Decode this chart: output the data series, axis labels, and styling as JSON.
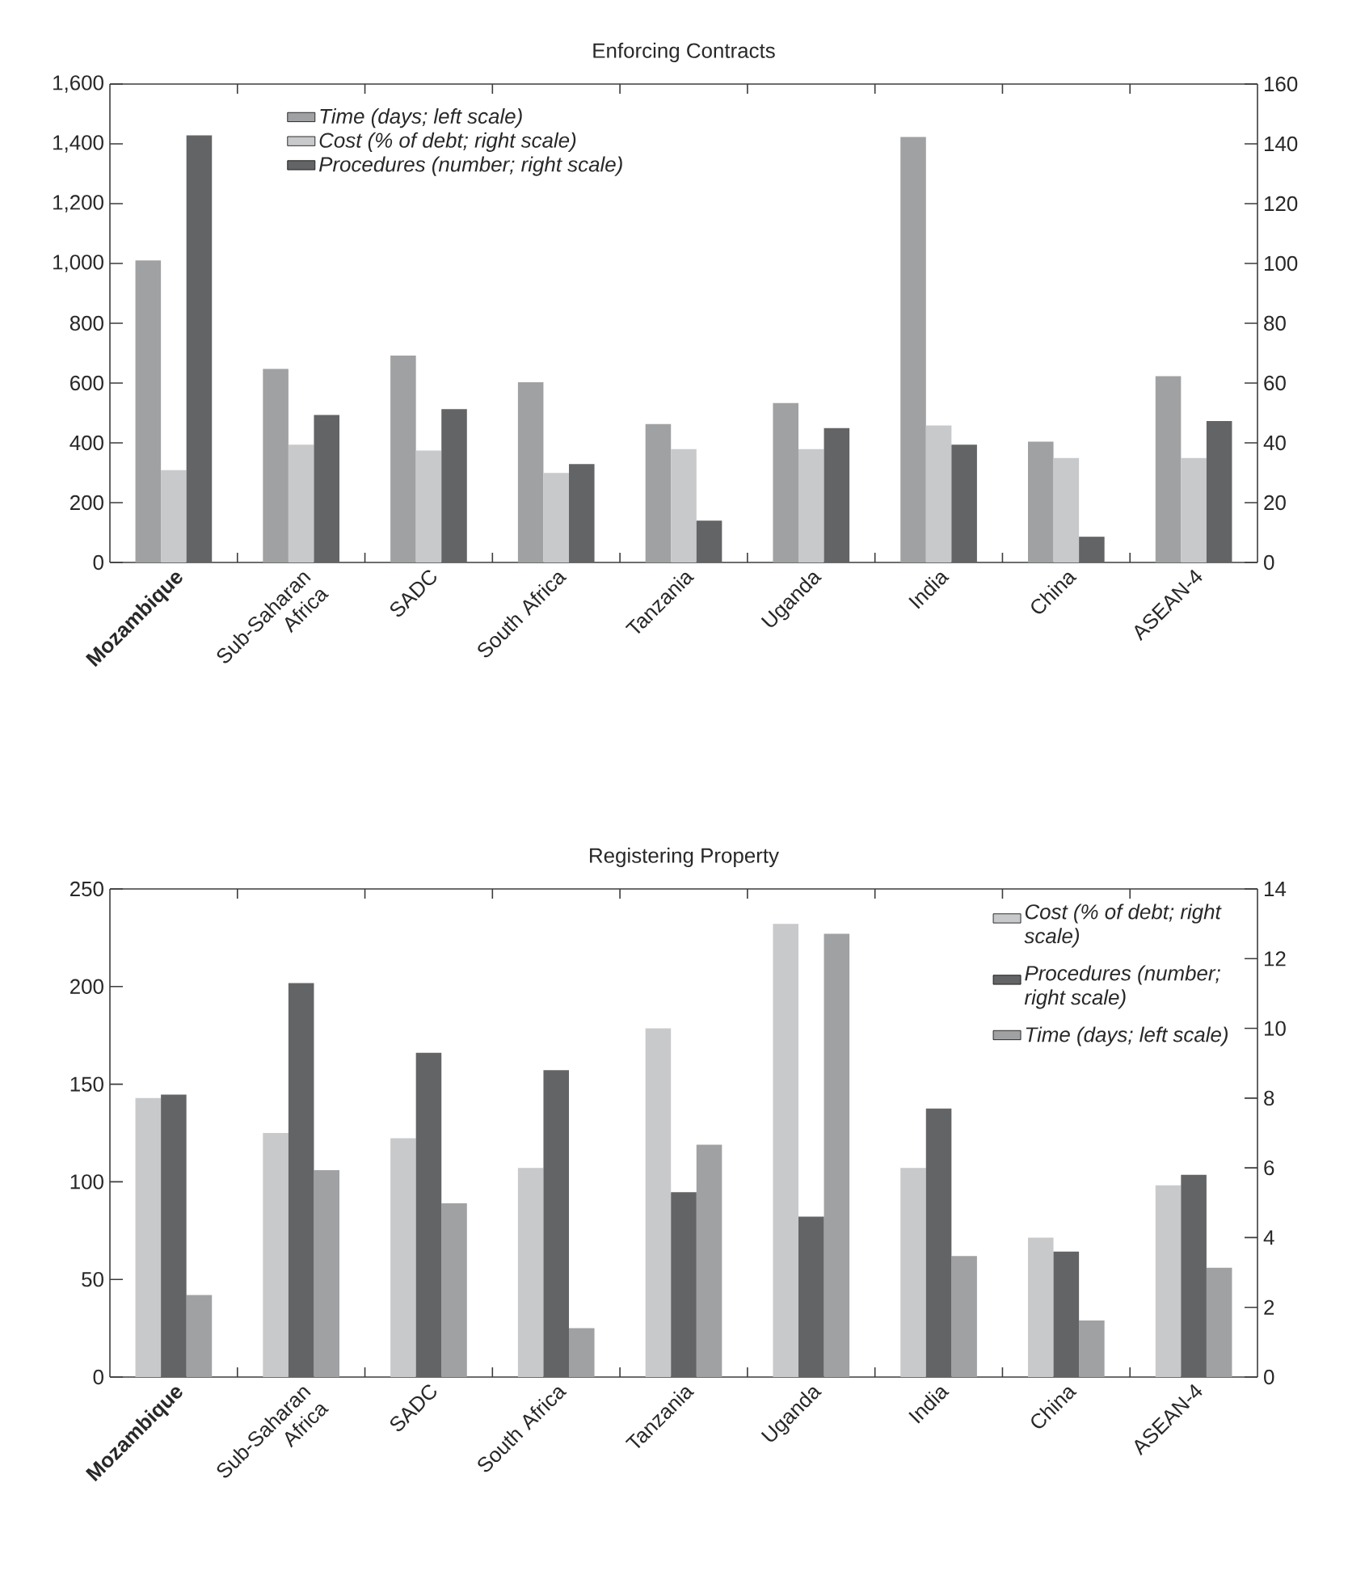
{
  "chart_data": [
    {
      "type": "bar",
      "title": "Enforcing Contracts",
      "categories": [
        "**Mozambique**",
        "Sub-Saharan Africa",
        "SADC",
        "South Africa",
        "Tanzania",
        "Uganda",
        "India",
        "China",
        "ASEAN-4"
      ],
      "series": [
        {
          "name": "Time (days; left scale)",
          "color": "#a0a1a3",
          "values": [
            1010,
            647,
            692,
            603,
            463,
            533,
            1423,
            404,
            623
          ]
        },
        {
          "name": "Cost (% of debt; right scale)",
          "color": "#c8c9cb",
          "axis": "y2",
          "values": [
            30.9,
            39.4,
            37.4,
            29.9,
            37.9,
            37.9,
            45.8,
            34.9,
            34.9
          ]
        },
        {
          "name": "Procedures (number; right scale)",
          "color": "#636466",
          "axis": "y2",
          "values": [
            142.8,
            49.3,
            51.3,
            32.9,
            14.0,
            44.9,
            39.4,
            8.6,
            47.3
          ]
        }
      ],
      "ylim": [
        0,
        1600
      ],
      "yticks": [
        0,
        200,
        400,
        600,
        800,
        {
          "value": 1000,
          "label": "1,000"
        },
        {
          "value": 1200,
          "label": "1,200"
        },
        {
          "value": 1400,
          "label": "1,400"
        },
        {
          "value": 1600,
          "label": "1,600"
        }
      ],
      "y2lim": [
        0,
        160
      ],
      "y2ticks": [
        0,
        20,
        40,
        60,
        80,
        100,
        120,
        140,
        160
      ],
      "legend": "top left"
    },
    {
      "type": "bar",
      "title": "Registering Property",
      "categories": [
        "**Mozambique**",
        "Sub-Saharan Africa",
        "SADC",
        "South Africa",
        "Tanzania",
        "Uganda",
        "India",
        "China",
        "ASEAN-4"
      ],
      "series": [
        {
          "name": "Cost (% of debt; right scale)",
          "color": "#c8c9cb",
          "axis": "y2",
          "values": [
            8.0,
            7.0,
            6.85,
            6.0,
            10.0,
            13.0,
            6.0,
            4.0,
            5.5
          ]
        },
        {
          "name": "Procedures (number; right scale)",
          "color": "#636466",
          "axis": "y2",
          "values": [
            8.1,
            11.3,
            9.3,
            8.8,
            5.3,
            4.6,
            7.7,
            3.6,
            5.8
          ]
        },
        {
          "name": "Time (days; left scale)",
          "color": "#a0a1a3",
          "values": [
            42,
            106,
            89,
            25,
            119,
            227,
            62,
            29,
            56
          ]
        }
      ],
      "ylim": [
        0,
        250
      ],
      "yticks": [
        0,
        50,
        100,
        150,
        200,
        250
      ],
      "y2lim": [
        0,
        14
      ],
      "y2ticks": [
        0,
        2,
        4,
        6,
        8,
        10,
        12,
        14
      ],
      "legend": "top right"
    }
  ]
}
